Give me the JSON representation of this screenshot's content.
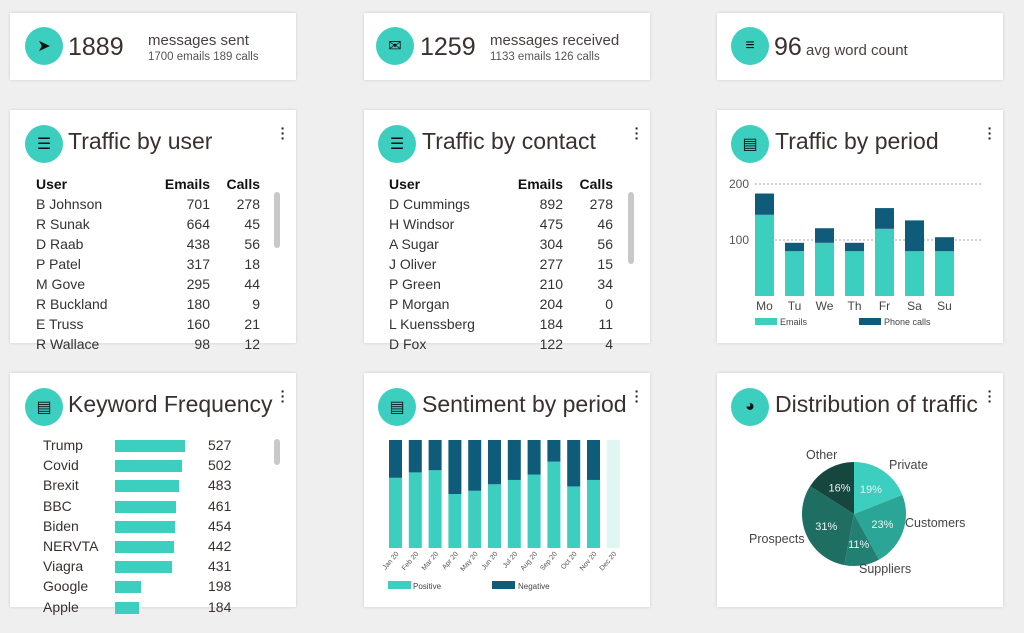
{
  "stats": [
    {
      "icon": "send-icon",
      "value": "1889",
      "label": "messages sent",
      "sub": "1700 emails 189 calls"
    },
    {
      "icon": "mail-icon",
      "value": "1259",
      "label": "messages received",
      "sub": "1133 emails 126 calls"
    },
    {
      "icon": "notes-icon",
      "value": "96",
      "label": "avg word count"
    }
  ],
  "traffic_user": {
    "title": "Traffic by user",
    "headers": [
      "User",
      "Emails",
      "Calls"
    ],
    "rows": [
      [
        "B Johnson",
        "701",
        "278"
      ],
      [
        "R Sunak",
        "664",
        "45"
      ],
      [
        "D Raab",
        "438",
        "56"
      ],
      [
        "P Patel",
        "317",
        "18"
      ],
      [
        "M Gove",
        "295",
        "44"
      ],
      [
        "R Buckland",
        "180",
        "9"
      ],
      [
        "E Truss",
        "160",
        "21"
      ],
      [
        "R Wallace",
        "98",
        "12"
      ]
    ]
  },
  "traffic_contact": {
    "title": "Traffic by contact",
    "headers": [
      "User",
      "Emails",
      "Calls"
    ],
    "rows": [
      [
        "D Cummings",
        "892",
        "278"
      ],
      [
        "H Windsor",
        "475",
        "46"
      ],
      [
        "A Sugar",
        "304",
        "56"
      ],
      [
        "J Oliver",
        "277",
        "15"
      ],
      [
        "P Green",
        "210",
        "34"
      ],
      [
        "P Morgan",
        "204",
        "0"
      ],
      [
        "L Kuenssberg",
        "184",
        "11"
      ],
      [
        "D Fox",
        "122",
        "4"
      ]
    ]
  },
  "keywords": {
    "title": "Keyword Frequency",
    "items": [
      [
        "Trump",
        527
      ],
      [
        "Covid",
        502
      ],
      [
        "Brexit",
        483
      ],
      [
        "BBC",
        461
      ],
      [
        "Biden",
        454
      ],
      [
        "NERVTA",
        442
      ],
      [
        "Viagra",
        431
      ],
      [
        "Google",
        198
      ],
      [
        "Apple",
        184
      ]
    ]
  },
  "colors": {
    "accent": "#3ccfbf",
    "dark": "#0e5b7a",
    "pie": [
      "#3ccfbf",
      "#2aa596",
      "#227f72",
      "#1e6e62",
      "#16473f"
    ]
  },
  "chart_data": [
    {
      "type": "bar",
      "stacked": true,
      "title": "Traffic by period",
      "categories": [
        "Mo",
        "Tu",
        "We",
        "Th",
        "Fr",
        "Sa",
        "Su"
      ],
      "series": [
        {
          "name": "Emails",
          "values": [
            145,
            80,
            95,
            80,
            120,
            80,
            80
          ]
        },
        {
          "name": "Phone calls",
          "values": [
            38,
            15,
            26,
            15,
            37,
            55,
            25
          ]
        }
      ],
      "yticks": [
        100,
        200
      ],
      "ylim": [
        0,
        200
      ],
      "grid": true,
      "legend": "bottom"
    },
    {
      "type": "bar",
      "stacked": true,
      "percent": true,
      "title": "Sentiment by period",
      "categories": [
        "Jan 20",
        "Feb 20",
        "Mar 20",
        "Apr 20",
        "May 20",
        "Jun 20",
        "Jul 20",
        "Aug 20",
        "Sep 20",
        "Oct 20",
        "Nov 20",
        "Dec 20"
      ],
      "series": [
        {
          "name": "Positive",
          "values": [
            65,
            70,
            72,
            50,
            53,
            59,
            63,
            68,
            80,
            57,
            63,
            null
          ]
        },
        {
          "name": "Negative",
          "values": [
            35,
            30,
            28,
            50,
            47,
            41,
            37,
            32,
            20,
            43,
            37,
            null
          ]
        }
      ],
      "legend": "bottom"
    },
    {
      "type": "pie",
      "title": "Distribution of traffic",
      "slices": [
        {
          "label": "Private",
          "value": 19
        },
        {
          "label": "Customers",
          "value": 23
        },
        {
          "label": "Suppliers",
          "value": 11
        },
        {
          "label": "Prospects",
          "value": 31
        },
        {
          "label": "Other",
          "value": 16
        }
      ]
    }
  ]
}
